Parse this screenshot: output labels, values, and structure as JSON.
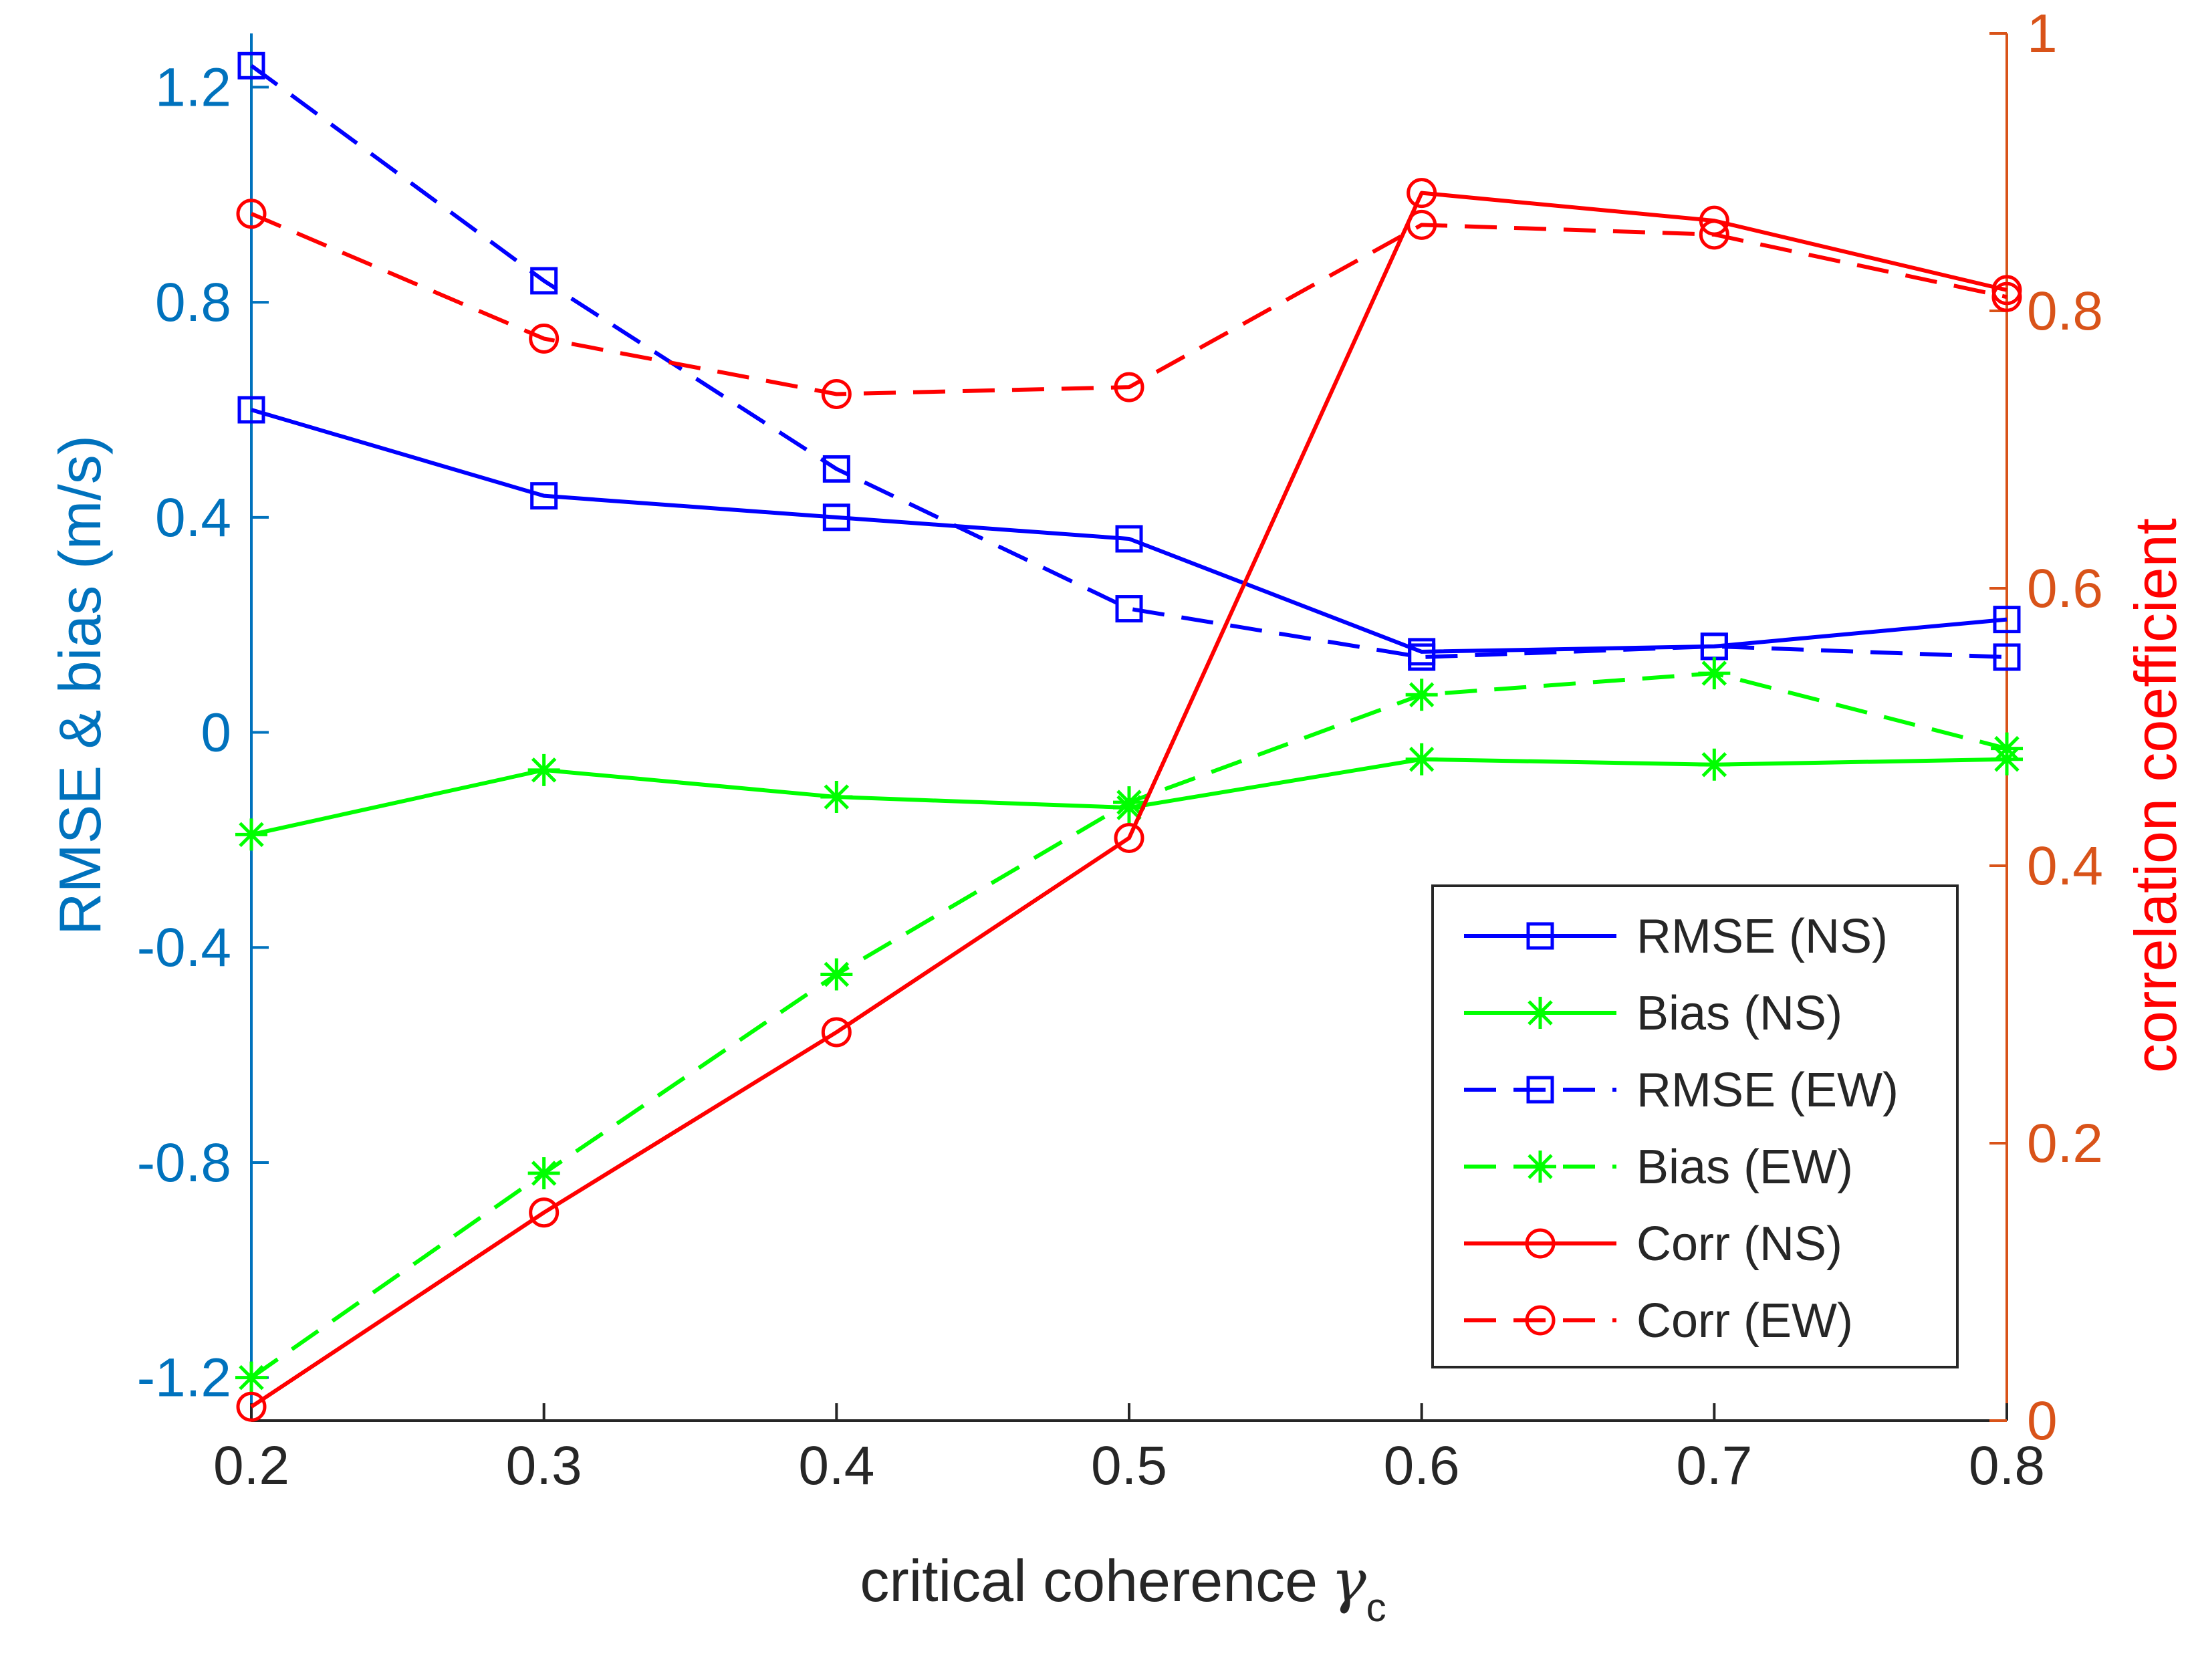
{
  "chart_data": {
    "type": "line",
    "x": [
      0.2,
      0.3,
      0.4,
      0.5,
      0.6,
      0.7,
      0.8
    ],
    "x_tick_labels": [
      "0.2",
      "0.3",
      "0.4",
      "0.5",
      "0.6",
      "0.7",
      "0.8"
    ],
    "xlabel": "critical coherence",
    "xlabel_symbol": "γ",
    "xlabel_subscript": "c",
    "xlim": [
      0.2,
      0.8
    ],
    "left_axis": {
      "label": "RMSE & bias (m/s)",
      "ylim": [
        -1.28,
        1.3
      ],
      "ticks": [
        -1.2,
        -0.8,
        -0.4,
        0,
        0.4,
        0.8,
        1.2
      ],
      "tick_labels": [
        "-1.2",
        "-0.8",
        "-0.4",
        "0",
        "0.4",
        "0.8",
        "1.2"
      ],
      "color": "#0072BD"
    },
    "right_axis": {
      "label": "correlation coefficient",
      "ylim": [
        0,
        1
      ],
      "ticks": [
        0,
        0.2,
        0.4,
        0.6,
        0.8,
        1
      ],
      "tick_labels": [
        "0",
        "0.2",
        "0.4",
        "0.6",
        "0.8",
        "1"
      ],
      "color": "#D95319",
      "label_color": "#FF0000"
    },
    "series": [
      {
        "name": "RMSE (NS)",
        "axis": "left",
        "color": "#0000FF",
        "dash": "solid",
        "marker": "square",
        "values": [
          0.6,
          0.44,
          0.4,
          0.36,
          0.15,
          0.16,
          0.21
        ]
      },
      {
        "name": "Bias (NS)",
        "axis": "left",
        "color": "#00FF00",
        "dash": "solid",
        "marker": "asterisk",
        "values": [
          -0.19,
          -0.07,
          -0.12,
          -0.14,
          -0.05,
          -0.06,
          -0.05
        ]
      },
      {
        "name": "RMSE (EW)",
        "axis": "left",
        "color": "#0000FF",
        "dash": "dashed",
        "marker": "square",
        "values": [
          1.24,
          0.84,
          0.49,
          0.23,
          0.14,
          0.16,
          0.14
        ]
      },
      {
        "name": "Bias (EW)",
        "axis": "left",
        "color": "#00FF00",
        "dash": "dashed",
        "marker": "asterisk",
        "values": [
          -1.2,
          -0.82,
          -0.45,
          -0.13,
          0.07,
          0.11,
          -0.03
        ]
      },
      {
        "name": "Corr (NS)",
        "axis": "right",
        "color": "#FF0000",
        "dash": "solid",
        "marker": "circle",
        "values": [
          0.01,
          0.15,
          0.28,
          0.42,
          0.885,
          0.865,
          0.815
        ]
      },
      {
        "name": "Corr (EW)",
        "axis": "right",
        "color": "#FF0000",
        "dash": "dashed",
        "marker": "circle",
        "values": [
          0.87,
          0.78,
          0.74,
          0.745,
          0.862,
          0.855,
          0.81
        ]
      }
    ],
    "legend_position": "bottom-right",
    "grid": false
  }
}
